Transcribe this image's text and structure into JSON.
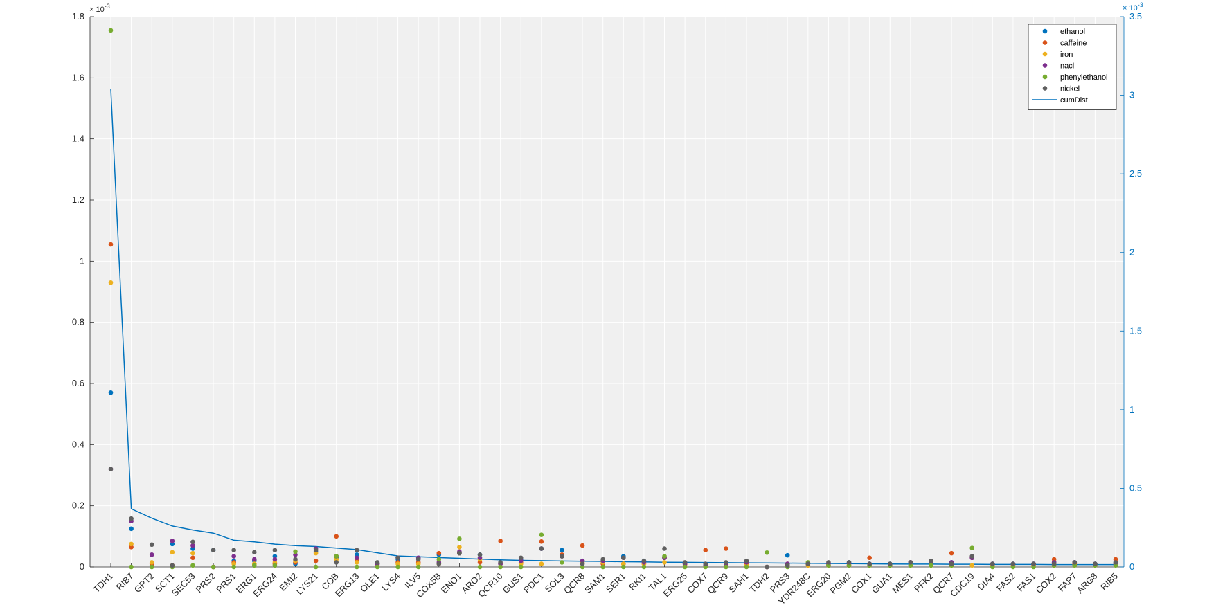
{
  "chart_data": {
    "type": "scatter",
    "categories": [
      "TDH1",
      "RIB7",
      "GPT2",
      "SCT1",
      "SEC53",
      "PRS2",
      "PRS1",
      "ERG1",
      "ERG24",
      "EMI2",
      "LYS21",
      "COB",
      "ERG13",
      "OLE1",
      "LYS4",
      "ILV5",
      "COX5B",
      "ENO1",
      "ARO2",
      "QCR10",
      "GUS1",
      "PDC1",
      "SOL3",
      "QCR8",
      "SAM1",
      "SER1",
      "RKI1",
      "TAL1",
      "ERG25",
      "COX7",
      "QCR9",
      "SAH1",
      "TDH2",
      "PRS3",
      "YDR248C",
      "ERG20",
      "PGM2",
      "COX1",
      "GUA1",
      "MES1",
      "PFK2",
      "QCR7",
      "CDC19",
      "DIA4",
      "FAS2",
      "FAS1",
      "COX2",
      "FAP7",
      "ARG8",
      "RIB5"
    ],
    "y_left": {
      "ylim": [
        0,
        1.8
      ],
      "ticks": [
        0,
        0.2,
        0.4,
        0.6,
        0.8,
        1,
        1.2,
        1.4,
        1.6,
        1.8
      ],
      "tick_labels": [
        "0",
        "0.2",
        "0.4",
        "0.6",
        "0.8",
        "1",
        "1.2",
        "1.4",
        "1.6",
        "1.8"
      ],
      "exponent_base": "× 10",
      "exponent_power": "-3"
    },
    "y_right": {
      "ylim": [
        0,
        3.5
      ],
      "ticks": [
        0,
        0.5,
        1,
        1.5,
        2,
        2.5,
        3,
        3.5
      ],
      "tick_labels": [
        "0",
        "0.5",
        "1",
        "1.5",
        "2",
        "2.5",
        "3",
        "3.5"
      ],
      "exponent_base": "× 10",
      "exponent_power": "-3",
      "color": "#0072BD"
    },
    "grid": true,
    "background": "#F0F0F0",
    "legend_position": "top-right",
    "series": [
      {
        "name": "ethanol",
        "kind": "scatter",
        "axis": "left",
        "color": "#0072BD",
        "values": [
          0.57,
          0.125,
          0.005,
          0.075,
          0.06,
          0.055,
          0.02,
          0.02,
          0.035,
          0.01,
          0.05,
          0.03,
          0.04,
          0.01,
          0.025,
          0.03,
          0.04,
          0.045,
          0.04,
          0.01,
          0.025,
          0.06,
          0.055,
          0.02,
          0.02,
          0.035,
          0.02,
          0.03,
          0.01,
          0.005,
          0.01,
          0.015,
          0,
          0.038,
          0.01,
          0.01,
          0.015,
          0.01,
          0.01,
          0.015,
          0.015,
          0.015,
          0.03,
          0.01,
          0.01,
          0.01,
          0.015,
          0.015,
          0.01,
          0.015
        ]
      },
      {
        "name": "caffeine",
        "kind": "scatter",
        "axis": "left",
        "color": "#D95319",
        "values": [
          1.055,
          0.065,
          0.01,
          0.005,
          0.03,
          0,
          0.015,
          0.01,
          0.01,
          0.015,
          0.02,
          0.1,
          0.02,
          0.01,
          0.015,
          0.015,
          0.045,
          0.045,
          0.015,
          0.085,
          0.015,
          0.083,
          0.04,
          0.07,
          0.01,
          0.01,
          0.01,
          0.03,
          0.01,
          0.055,
          0.06,
          0.01,
          0,
          0.01,
          0.01,
          0.005,
          0.005,
          0.03,
          0.005,
          0.015,
          0.01,
          0.045,
          0.03,
          0.005,
          0.005,
          0.005,
          0.025,
          0.01,
          0.005,
          0.025
        ]
      },
      {
        "name": "iron",
        "kind": "scatter",
        "axis": "left",
        "color": "#EDB120",
        "values": [
          0.93,
          0.075,
          0.015,
          0.048,
          0.045,
          0,
          0.01,
          0.01,
          0.015,
          0.02,
          0.045,
          0.025,
          0.015,
          0.005,
          0.01,
          0.01,
          0.01,
          0.065,
          0.025,
          0.01,
          0.01,
          0.01,
          0.035,
          0.015,
          0.015,
          0.01,
          0.01,
          0.015,
          0.005,
          0.005,
          0.005,
          0.005,
          0,
          0.005,
          0.005,
          0.005,
          0.005,
          0.005,
          0.005,
          0.005,
          0.005,
          0.005,
          0.005,
          0.005,
          0.005,
          0.005,
          0.005,
          0.005,
          0.005,
          0.01
        ]
      },
      {
        "name": "nacl",
        "kind": "scatter",
        "axis": "left",
        "color": "#7E2F8E",
        "values": [
          0.32,
          0.15,
          0.04,
          0.085,
          0.07,
          0,
          0.035,
          0.025,
          0.025,
          0.04,
          0.06,
          0.035,
          0.03,
          0.01,
          0.03,
          0.03,
          0.015,
          0.05,
          0.03,
          0.01,
          0.02,
          0.06,
          0.035,
          0.02,
          0.02,
          0.03,
          0.015,
          0.03,
          0.01,
          0.005,
          0.01,
          0.015,
          0,
          0.01,
          0.01,
          0.01,
          0.01,
          0.01,
          0.005,
          0.015,
          0.015,
          0.015,
          0.03,
          0.01,
          0.01,
          0.01,
          0.015,
          0.015,
          0.01,
          0.01
        ]
      },
      {
        "name": "phenylethanol",
        "kind": "scatter",
        "axis": "left",
        "color": "#77AC30",
        "values": [
          1.755,
          0,
          0,
          0,
          0.005,
          0,
          0,
          0.005,
          0.005,
          0.05,
          0,
          0.035,
          0,
          0,
          0,
          0,
          0.025,
          0.092,
          0,
          0,
          0,
          0.105,
          0.015,
          0,
          0,
          0,
          0,
          0.035,
          0,
          0,
          0,
          0,
          0.047,
          0,
          0.015,
          0.005,
          0.005,
          0.005,
          0.005,
          0.005,
          0.005,
          0.005,
          0.062,
          0,
          0,
          0,
          0.005,
          0.005,
          0.005,
          0.005
        ]
      },
      {
        "name": "nickel",
        "kind": "scatter",
        "axis": "left",
        "color": "#606060",
        "values": [
          0.32,
          0.158,
          0.073,
          0.005,
          0.082,
          0.055,
          0.055,
          0.048,
          0.055,
          0.025,
          0.055,
          0.015,
          0.055,
          0.015,
          0.03,
          0.025,
          0.01,
          0.045,
          0.04,
          0.015,
          0.03,
          0.06,
          0.035,
          0.01,
          0.025,
          0.03,
          0.02,
          0.06,
          0.015,
          0.01,
          0.015,
          0.02,
          0,
          0.005,
          0.01,
          0.015,
          0.015,
          0.01,
          0.01,
          0.015,
          0.02,
          0.01,
          0.035,
          0.01,
          0.01,
          0.01,
          0.01,
          0.015,
          0.01,
          0.015
        ]
      },
      {
        "name": "cumDist",
        "kind": "line",
        "axis": "right",
        "color": "#0072BD",
        "values": [
          3.04,
          0.37,
          0.31,
          0.26,
          0.235,
          0.215,
          0.17,
          0.16,
          0.145,
          0.135,
          0.13,
          0.12,
          0.11,
          0.09,
          0.07,
          0.065,
          0.06,
          0.055,
          0.05,
          0.045,
          0.042,
          0.04,
          0.038,
          0.036,
          0.035,
          0.033,
          0.032,
          0.03,
          0.029,
          0.028,
          0.027,
          0.026,
          0.025,
          0.024,
          0.023,
          0.022,
          0.021,
          0.02,
          0.019,
          0.018,
          0.018,
          0.017,
          0.017,
          0.016,
          0.016,
          0.016,
          0.015,
          0.015,
          0.015,
          0.015
        ]
      }
    ]
  }
}
